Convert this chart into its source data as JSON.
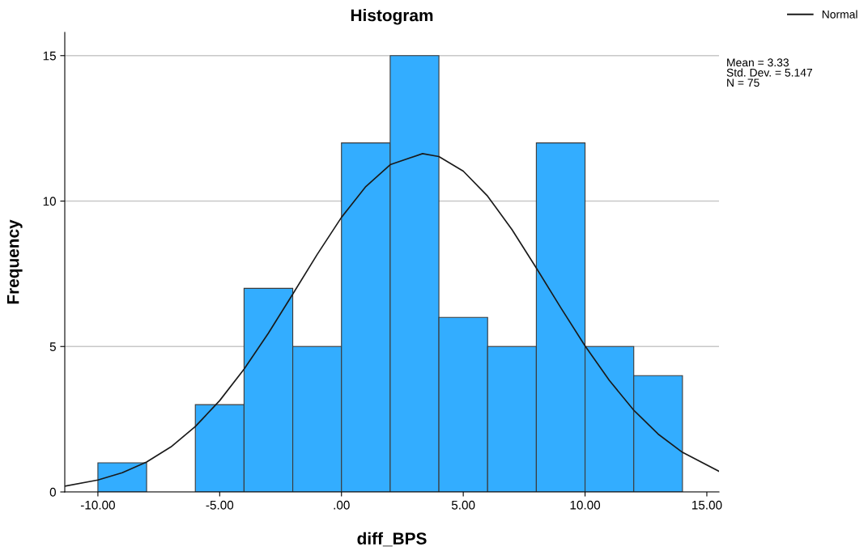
{
  "chart_data": {
    "type": "histogram",
    "title": "Histogram",
    "xlabel": "diff_BPS",
    "ylabel": "Frequency",
    "series": [
      {
        "color": "#33adff",
        "bins": [
          -10,
          -8,
          -6,
          -4,
          -2,
          0,
          2,
          4,
          6,
          8,
          10,
          12,
          14
        ],
        "values": [
          1,
          0,
          3,
          7,
          5,
          12,
          15,
          6,
          5,
          12,
          5,
          4
        ]
      },
      {
        "type": "line",
        "name": "Normal",
        "color": "#1a1a1a",
        "x": [
          -11.36,
          -10,
          -9,
          -8,
          -7,
          -6,
          -5,
          -4,
          -3,
          -2,
          -1,
          0,
          1,
          2,
          3.33,
          4,
          5,
          6,
          7,
          8,
          9,
          10,
          11,
          12,
          13,
          14,
          15.5
        ],
        "values": [
          0.2,
          0.41,
          0.66,
          1.03,
          1.55,
          2.25,
          3.14,
          4.22,
          5.46,
          6.8,
          8.16,
          9.44,
          10.5,
          11.25,
          11.63,
          11.53,
          11.03,
          10.17,
          9.02,
          7.7,
          6.34,
          5.02,
          3.83,
          2.81,
          1.99,
          1.36,
          0.71
        ]
      }
    ],
    "xlim": [
      -11.36,
      15.5
    ],
    "ylim": [
      0,
      15.8
    ],
    "xticks": [
      {
        "value": -10,
        "label": "-10.00"
      },
      {
        "value": -5,
        "label": "-5.00"
      },
      {
        "value": 0,
        "label": ".00"
      },
      {
        "value": 5,
        "label": "5.00"
      },
      {
        "value": 10,
        "label": "10.00"
      },
      {
        "value": 15,
        "label": "15.00"
      }
    ],
    "yticks": [
      0,
      5,
      10,
      15
    ],
    "grid": "y",
    "legend": "top right",
    "marker": "none",
    "line_style": "solid",
    "annotations": [
      "Mean = 3.33\nStd. Dev. = 5.147\nN = 75"
    ]
  }
}
